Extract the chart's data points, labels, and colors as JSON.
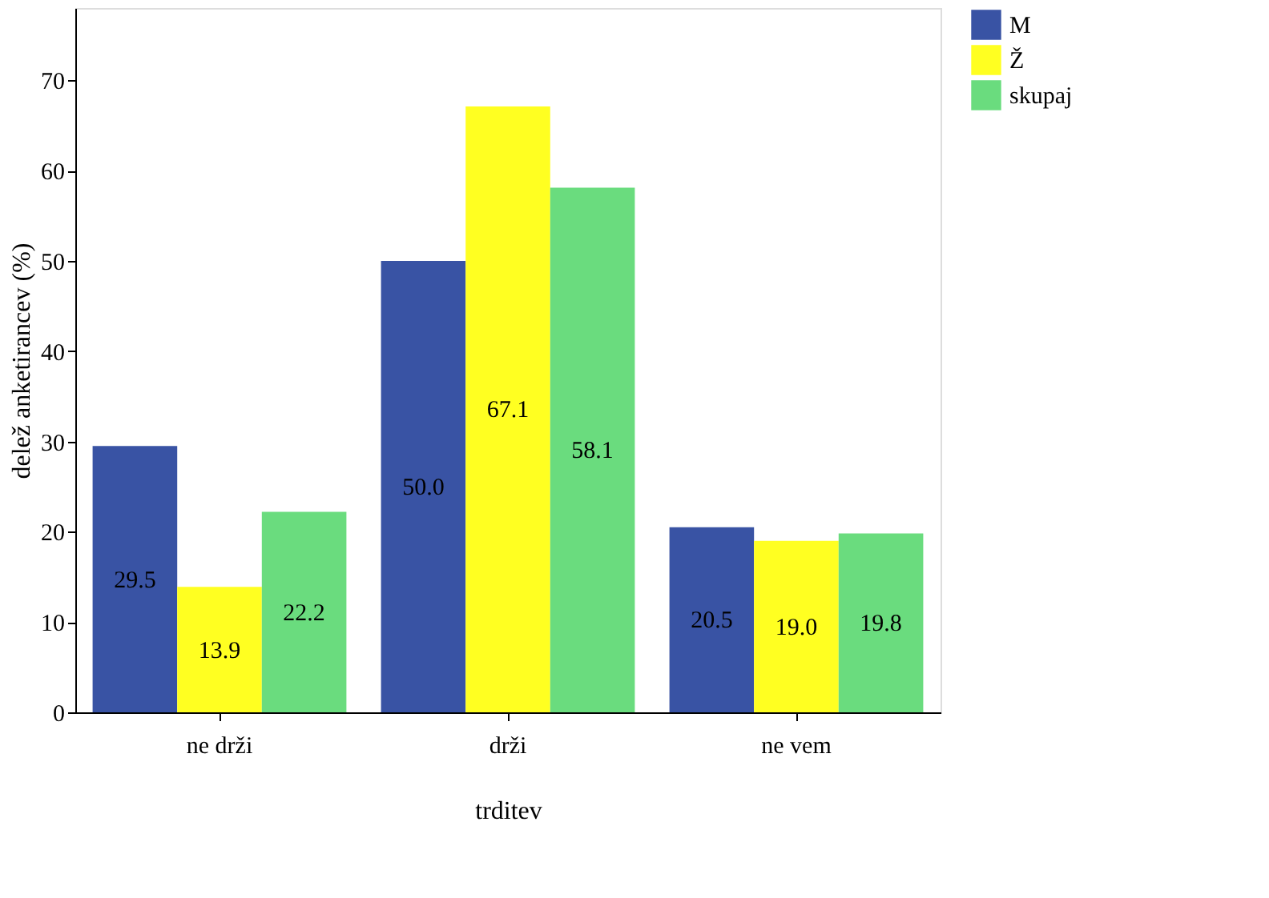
{
  "chart_data": {
    "type": "bar",
    "xlabel": "trditev",
    "ylabel": "delež anketirancev (%)",
    "categories": [
      "ne drži",
      "drži",
      "ne vem"
    ],
    "series": [
      {
        "name": "M",
        "color": "#3953a4",
        "values": [
          29.5,
          50.0,
          20.5
        ],
        "value_labels": [
          "29.5",
          "50.0",
          "20.5"
        ]
      },
      {
        "name": "Ž",
        "color": "#ffff21",
        "values": [
          13.9,
          67.1,
          19.0
        ],
        "value_labels": [
          "13.9",
          "67.1",
          "19.0"
        ]
      },
      {
        "name": "skupaj",
        "color": "#6adc7e",
        "values": [
          22.2,
          58.1,
          19.8
        ],
        "value_labels": [
          "22.2",
          "58.1",
          "19.8"
        ]
      }
    ],
    "ylim": [
      0,
      78
    ],
    "yticks": [
      0,
      10,
      20,
      30,
      40,
      50,
      60,
      70
    ],
    "grid": false,
    "legend": "right"
  }
}
